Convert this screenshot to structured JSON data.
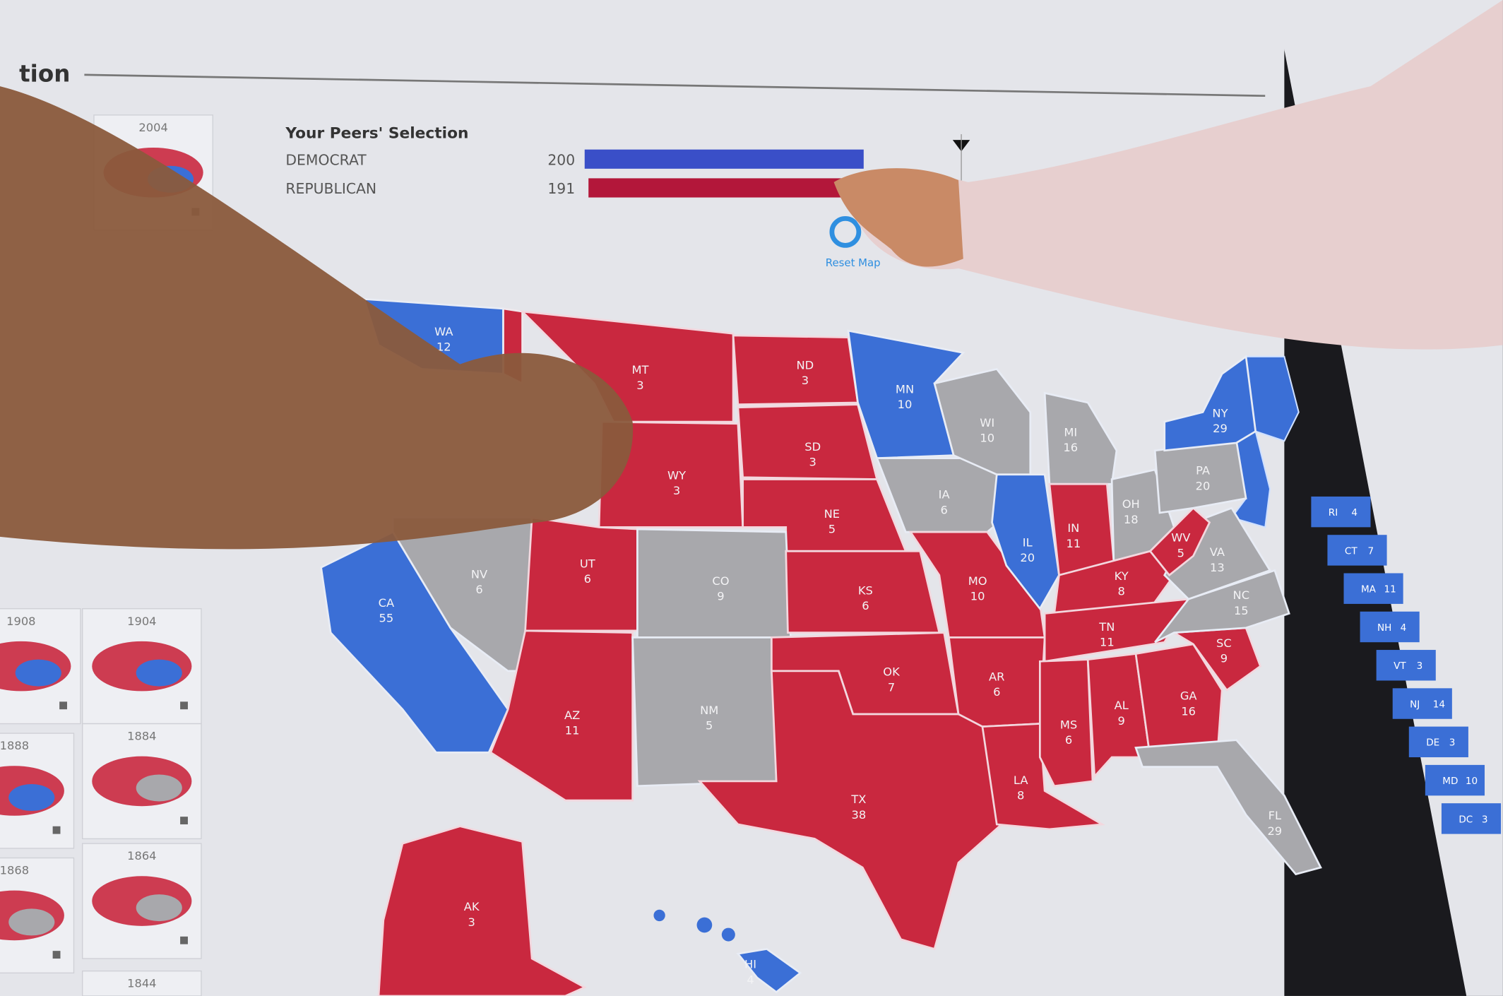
{
  "header": {
    "title_fragment": "tion"
  },
  "peers": {
    "title": "Your Peers' Selection",
    "rows": [
      {
        "party": "DEMOCRAT",
        "votes": "200",
        "value": 200,
        "color": "#3a4fc8"
      },
      {
        "party": "REPUBLICAN",
        "votes": "191",
        "value": 191,
        "color": "#b3173a"
      }
    ],
    "threshold": 270
  },
  "reset_button": {
    "label": "Reset Map",
    "icon": "reset-icon"
  },
  "colors": {
    "democrat": "#3b6fd6",
    "republican": "#c9283f",
    "undecided": "#a8a8ac",
    "background": "#e4e5ea"
  },
  "history_years": [
    "2004",
    "1908",
    "1904",
    "1888",
    "1884",
    "1868",
    "1864",
    "1844"
  ],
  "states": [
    {
      "abbr": "WA",
      "ev": "12",
      "party": "D"
    },
    {
      "abbr": "MT",
      "ev": "3",
      "party": "R"
    },
    {
      "abbr": "ND",
      "ev": "3",
      "party": "R"
    },
    {
      "abbr": "SD",
      "ev": "3",
      "party": "R"
    },
    {
      "abbr": "WY",
      "ev": "3",
      "party": "R"
    },
    {
      "abbr": "NE",
      "ev": "5",
      "party": "R"
    },
    {
      "abbr": "CA",
      "ev": "55",
      "party": "D"
    },
    {
      "abbr": "NV",
      "ev": "6",
      "party": "U"
    },
    {
      "abbr": "UT",
      "ev": "6",
      "party": "R"
    },
    {
      "abbr": "CO",
      "ev": "9",
      "party": "U"
    },
    {
      "abbr": "AZ",
      "ev": "11",
      "party": "R"
    },
    {
      "abbr": "NM",
      "ev": "5",
      "party": "U"
    },
    {
      "abbr": "KS",
      "ev": "6",
      "party": "R"
    },
    {
      "abbr": "OK",
      "ev": "7",
      "party": "R"
    },
    {
      "abbr": "TX",
      "ev": "38",
      "party": "R"
    },
    {
      "abbr": "MN",
      "ev": "10",
      "party": "D"
    },
    {
      "abbr": "IA",
      "ev": "6",
      "party": "U"
    },
    {
      "abbr": "MO",
      "ev": "10",
      "party": "R"
    },
    {
      "abbr": "AR",
      "ev": "6",
      "party": "R"
    },
    {
      "abbr": "LA",
      "ev": "8",
      "party": "R"
    },
    {
      "abbr": "WI",
      "ev": "10",
      "party": "U"
    },
    {
      "abbr": "IL",
      "ev": "20",
      "party": "D"
    },
    {
      "abbr": "MI",
      "ev": "16",
      "party": "U"
    },
    {
      "abbr": "IN",
      "ev": "11",
      "party": "R"
    },
    {
      "abbr": "OH",
      "ev": "18",
      "party": "U"
    },
    {
      "abbr": "KY",
      "ev": "8",
      "party": "R"
    },
    {
      "abbr": "TN",
      "ev": "11",
      "party": "R"
    },
    {
      "abbr": "MS",
      "ev": "6",
      "party": "R"
    },
    {
      "abbr": "AL",
      "ev": "9",
      "party": "R"
    },
    {
      "abbr": "GA",
      "ev": "16",
      "party": "R"
    },
    {
      "abbr": "SC",
      "ev": "9",
      "party": "R"
    },
    {
      "abbr": "NC",
      "ev": "15",
      "party": "U"
    },
    {
      "abbr": "VA",
      "ev": "13",
      "party": "U"
    },
    {
      "abbr": "WV",
      "ev": "5",
      "party": "R"
    },
    {
      "abbr": "PA",
      "ev": "20",
      "party": "U"
    },
    {
      "abbr": "NY",
      "ev": "29",
      "party": "D"
    },
    {
      "abbr": "FL",
      "ev": "29",
      "party": "U"
    },
    {
      "abbr": "AK",
      "ev": "3",
      "party": "R"
    },
    {
      "abbr": "HI",
      "ev": "4",
      "party": "D"
    }
  ],
  "small_states": [
    {
      "abbr": "RI",
      "ev": "4"
    },
    {
      "abbr": "CT",
      "ev": "7"
    },
    {
      "abbr": "MA",
      "ev": "11"
    },
    {
      "abbr": "NH",
      "ev": "4"
    },
    {
      "abbr": "VT",
      "ev": "3"
    },
    {
      "abbr": "NJ",
      "ev": "14"
    },
    {
      "abbr": "DE",
      "ev": "3"
    },
    {
      "abbr": "MD",
      "ev": "10"
    },
    {
      "abbr": "DC",
      "ev": "3"
    }
  ]
}
